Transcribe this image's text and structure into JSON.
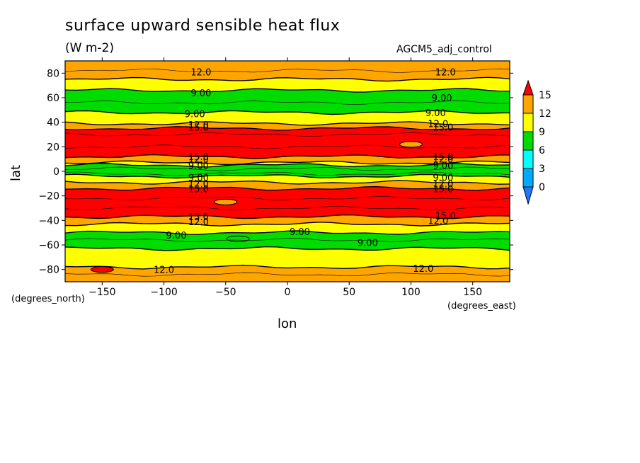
{
  "chart_data": {
    "type": "heatmap",
    "title": "surface upward sensible heat flux",
    "units": "(W m-2)",
    "dataset": "AGCM5_adj_control",
    "xlabel": "lon",
    "ylabel": "lat",
    "x_units": "(degrees_east)",
    "y_units": "(degrees_north)",
    "xlim": [
      -180,
      180
    ],
    "ylim": [
      -90,
      90
    ],
    "x_ticks": [
      -150,
      -100,
      -50,
      0,
      50,
      100,
      150
    ],
    "y_ticks": [
      -80,
      -60,
      -40,
      -20,
      0,
      20,
      40,
      60,
      80
    ],
    "colorbar": {
      "levels": [
        0,
        3,
        6,
        9,
        12,
        15
      ],
      "colors": [
        "#1e78ff",
        "#00aaff",
        "#00ffff",
        "#00dc00",
        "#ffff00",
        "#ffa500",
        "#ff0000"
      ],
      "labels": [
        "0",
        "3",
        "6",
        "9",
        "12",
        "15"
      ]
    },
    "bands": [
      {
        "lat_top": 90,
        "lat_bottom": 75,
        "color": "#ffa500"
      },
      {
        "lat_top": 75,
        "lat_bottom": 66,
        "color": "#ffff00"
      },
      {
        "lat_top": 66,
        "lat_bottom": 48,
        "color": "#00dc00"
      },
      {
        "lat_top": 48,
        "lat_bottom": 39,
        "color": "#ffff00"
      },
      {
        "lat_top": 39,
        "lat_bottom": 35,
        "color": "#ffa500"
      },
      {
        "lat_top": 35,
        "lat_bottom": 12,
        "color": "#ff0000"
      },
      {
        "lat_top": 12,
        "lat_bottom": 7,
        "color": "#ffa500"
      },
      {
        "lat_top": 7,
        "lat_bottom": 5,
        "color": "#ffff00"
      },
      {
        "lat_top": 5,
        "lat_bottom": -4,
        "color": "#00dc00"
      },
      {
        "lat_top": -4,
        "lat_bottom": -9,
        "color": "#ffff00"
      },
      {
        "lat_top": -9,
        "lat_bottom": -14,
        "color": "#ffa500"
      },
      {
        "lat_top": -14,
        "lat_bottom": -37,
        "color": "#ff0000"
      },
      {
        "lat_top": -37,
        "lat_bottom": -43,
        "color": "#ffa500"
      },
      {
        "lat_top": -43,
        "lat_bottom": -50,
        "color": "#ffff00"
      },
      {
        "lat_top": -50,
        "lat_bottom": -63,
        "color": "#00dc00"
      },
      {
        "lat_top": -63,
        "lat_bottom": -78,
        "color": "#ffff00"
      },
      {
        "lat_top": -78,
        "lat_bottom": -90,
        "color": "#ffa500"
      }
    ],
    "contour_labels": [
      {
        "text": "12.0",
        "lon": -70,
        "lat": 81
      },
      {
        "text": "12.0",
        "lon": 128,
        "lat": 81
      },
      {
        "text": "9.00",
        "lon": -70,
        "lat": 64
      },
      {
        "text": "9.00",
        "lon": 125,
        "lat": 60
      },
      {
        "text": "9.00",
        "lon": -75,
        "lat": 47
      },
      {
        "text": "9.00",
        "lon": 120,
        "lat": 48
      },
      {
        "text": "12.0",
        "lon": -72,
        "lat": 38
      },
      {
        "text": "15.0",
        "lon": -72,
        "lat": 36
      },
      {
        "text": "12.0",
        "lon": 122,
        "lat": 39
      },
      {
        "text": "15.0",
        "lon": 126,
        "lat": 36
      },
      {
        "text": "15.0",
        "lon": -72,
        "lat": 12
      },
      {
        "text": "12.0",
        "lon": -72,
        "lat": 10
      },
      {
        "text": "9.00",
        "lon": -72,
        "lat": 5
      },
      {
        "text": "15.0",
        "lon": 126,
        "lat": 12
      },
      {
        "text": "12.0",
        "lon": 126,
        "lat": 10
      },
      {
        "text": "9.00",
        "lon": 126,
        "lat": 5
      },
      {
        "text": "9.00",
        "lon": -72,
        "lat": -5
      },
      {
        "text": "12.0",
        "lon": -72,
        "lat": -10
      },
      {
        "text": "15.0",
        "lon": -72,
        "lat": -14
      },
      {
        "text": "9.00",
        "lon": 126,
        "lat": -5
      },
      {
        "text": "12.0",
        "lon": 126,
        "lat": -10
      },
      {
        "text": "15.0",
        "lon": 126,
        "lat": -14
      },
      {
        "text": "15.0",
        "lon": -72,
        "lat": -37
      },
      {
        "text": "12.0",
        "lon": -72,
        "lat": -41
      },
      {
        "text": "15.0",
        "lon": 128,
        "lat": -36
      },
      {
        "text": "12.0",
        "lon": 122,
        "lat": -40
      },
      {
        "text": "9.00",
        "lon": -90,
        "lat": -52
      },
      {
        "text": "9.00",
        "lon": 10,
        "lat": -49
      },
      {
        "text": "9.00",
        "lon": 65,
        "lat": -58
      },
      {
        "text": "12.0",
        "lon": -100,
        "lat": -80
      },
      {
        "text": "12.0",
        "lon": 110,
        "lat": -79
      }
    ]
  }
}
